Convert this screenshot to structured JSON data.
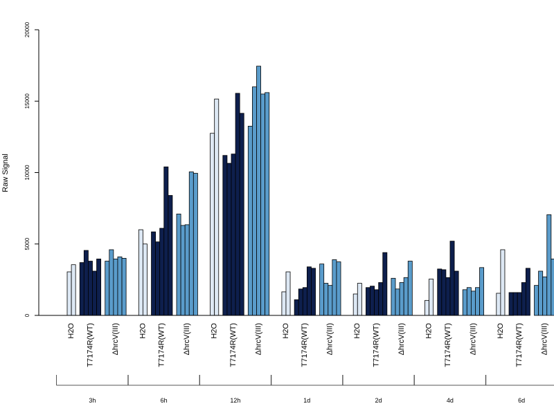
{
  "chart_data": {
    "type": "bar",
    "ylabel": "Raw Signal",
    "ylim": [
      0,
      20000
    ],
    "yticks": [
      "0",
      "5000",
      "10000",
      "15000",
      "20000"
    ],
    "time_points": [
      "3h",
      "6h",
      "12h",
      "1d",
      "2d",
      "4d",
      "6d"
    ],
    "treatments": [
      "H2O",
      "T7174R(WT)",
      "ΔhrcV(III)"
    ],
    "colors": {
      "H2O": "#dde8f4",
      "T7174R(WT)": "#0e1f4d",
      "ΔhrcV(III)": "#5a9ccb"
    },
    "groups": [
      {
        "time": "3h",
        "H2O": [
          3050,
          3550
        ],
        "T7174R(WT)": [
          3700,
          4550,
          3800,
          3100,
          3950
        ],
        "ΔhrcV(III)": [
          3800,
          4600,
          3950,
          4100,
          4000
        ]
      },
      {
        "time": "6h",
        "H2O": [
          6000,
          5000
        ],
        "T7174R(WT)": [
          5850,
          5150,
          6100,
          10400,
          8400
        ],
        "ΔhrcV(III)": [
          7100,
          6300,
          6350,
          10050,
          9950
        ]
      },
      {
        "time": "12h",
        "H2O": [
          12750,
          15150
        ],
        "T7174R(WT)": [
          11200,
          10650,
          11300,
          15550,
          14150
        ],
        "ΔhrcV(III)": [
          13250,
          16000,
          17450,
          15500,
          15600
        ]
      },
      {
        "time": "1d",
        "H2O": [
          1650,
          3050
        ],
        "T7174R(WT)": [
          1100,
          1850,
          1950,
          3400,
          3300
        ],
        "ΔhrcV(III)": [
          3600,
          2250,
          2100,
          3900,
          3750
        ]
      },
      {
        "time": "2d",
        "H2O": [
          1500,
          2250
        ],
        "T7174R(WT)": [
          1950,
          2050,
          1800,
          2300,
          4400
        ],
        "ΔhrcV(III)": [
          2600,
          1850,
          2300,
          2650,
          3800
        ]
      },
      {
        "time": "4d",
        "H2O": [
          1050,
          2550
        ],
        "T7174R(WT)": [
          3250,
          3200,
          2650,
          5200,
          3100
        ],
        "ΔhrcV(III)": [
          1800,
          1950,
          1700,
          1950,
          3350
        ]
      },
      {
        "time": "6d",
        "H2O": [
          1550,
          4600
        ],
        "T7174R(WT)": [
          1600,
          1600,
          1600,
          2300,
          3300
        ],
        "ΔhrcV(III)": [
          2100,
          3100,
          2700,
          7050,
          3950
        ]
      }
    ]
  }
}
